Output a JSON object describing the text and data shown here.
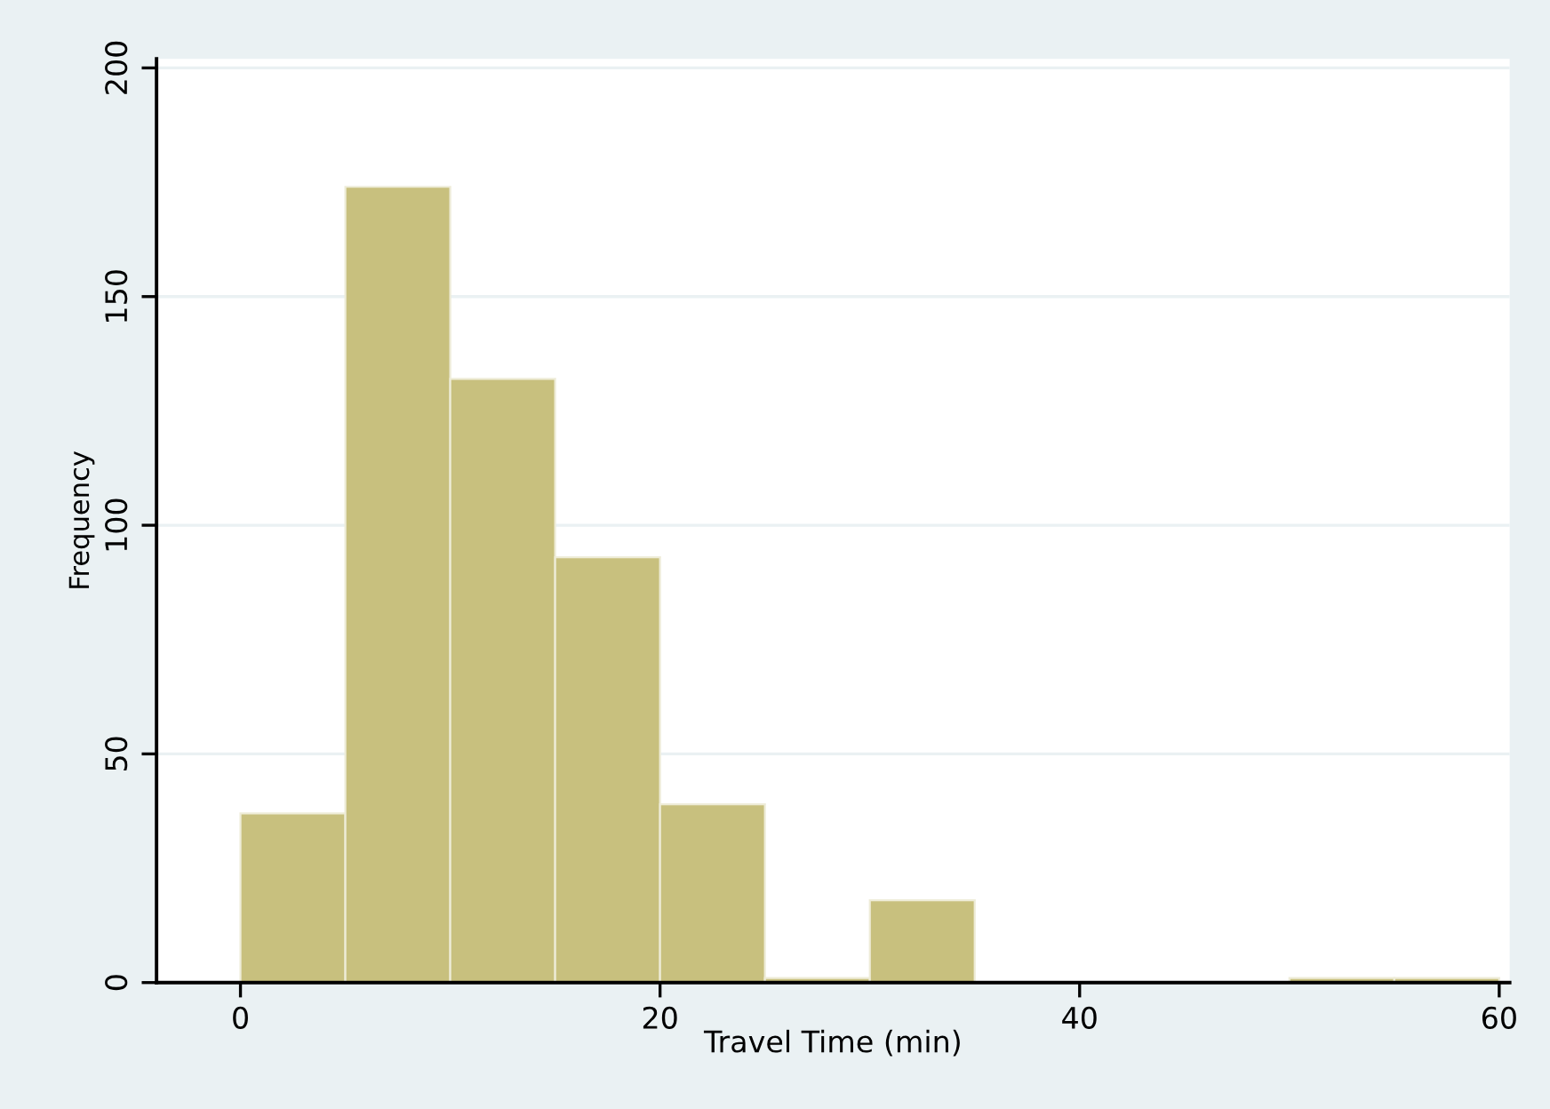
{
  "chart_data": {
    "type": "histogram",
    "xlabel": "Travel Time (min)",
    "ylabel": "Frequency",
    "bins": [
      0,
      5,
      10,
      15,
      20,
      25,
      30,
      35,
      40,
      45,
      50,
      55,
      60
    ],
    "values": [
      37,
      174,
      132,
      93,
      39,
      1,
      18,
      0,
      0,
      0,
      1,
      1
    ],
    "color": "#c8c07e",
    "xlim": [
      -4,
      60.5
    ],
    "xticks": [
      0,
      20,
      40,
      60
    ],
    "ylim": [
      0,
      202
    ],
    "yticks": [
      0,
      50,
      100,
      150,
      200
    ],
    "grid": "y"
  }
}
